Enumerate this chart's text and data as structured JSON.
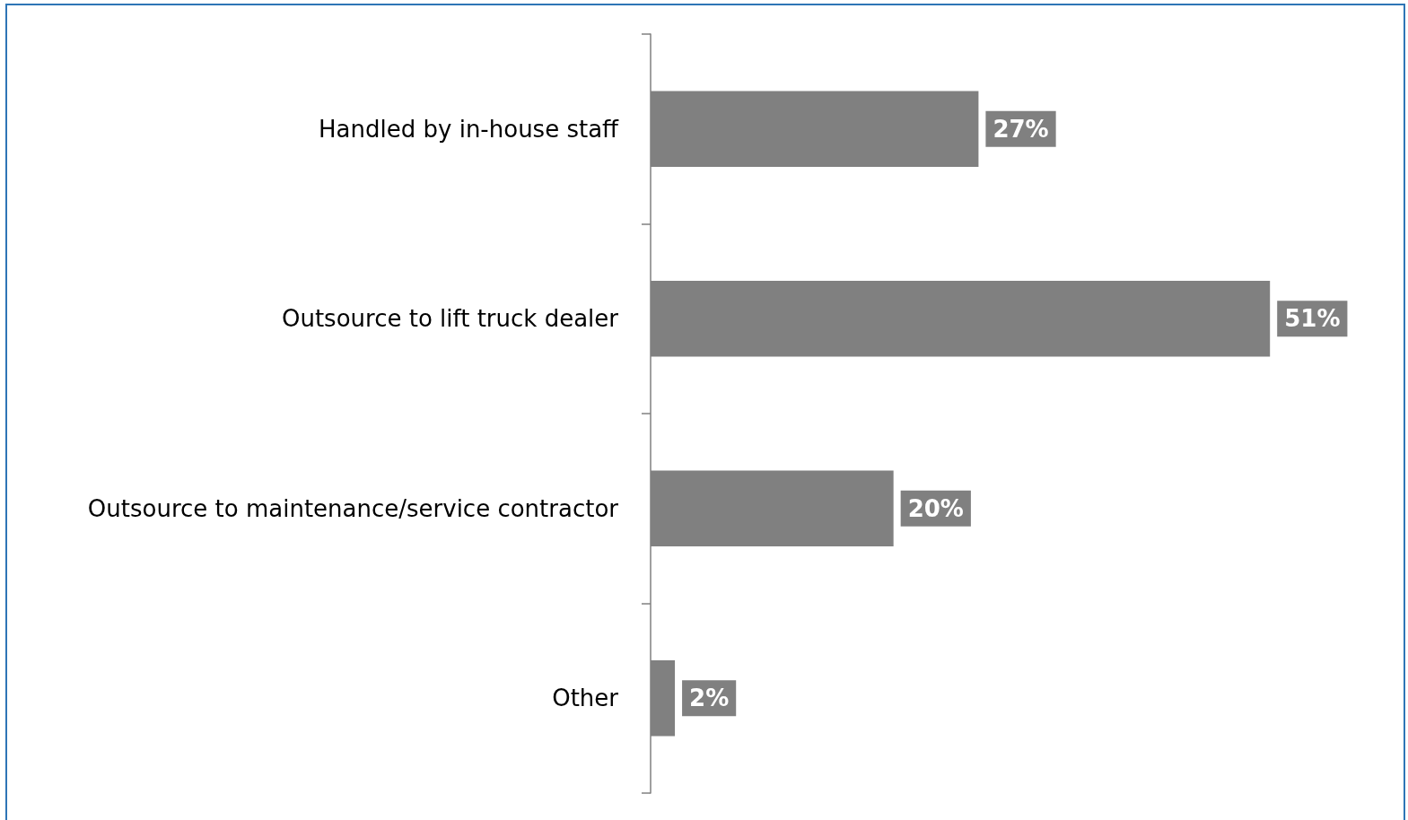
{
  "chart_data": {
    "type": "bar",
    "orientation": "horizontal",
    "categories": [
      "Handled by in-house staff",
      "Outsource to lift truck dealer",
      "Outsource to maintenance/service contractor",
      "Other"
    ],
    "values": [
      27,
      51,
      20,
      2
    ],
    "value_labels": [
      "27%",
      "51%",
      "20%",
      "2%"
    ],
    "color": "#808080"
  }
}
